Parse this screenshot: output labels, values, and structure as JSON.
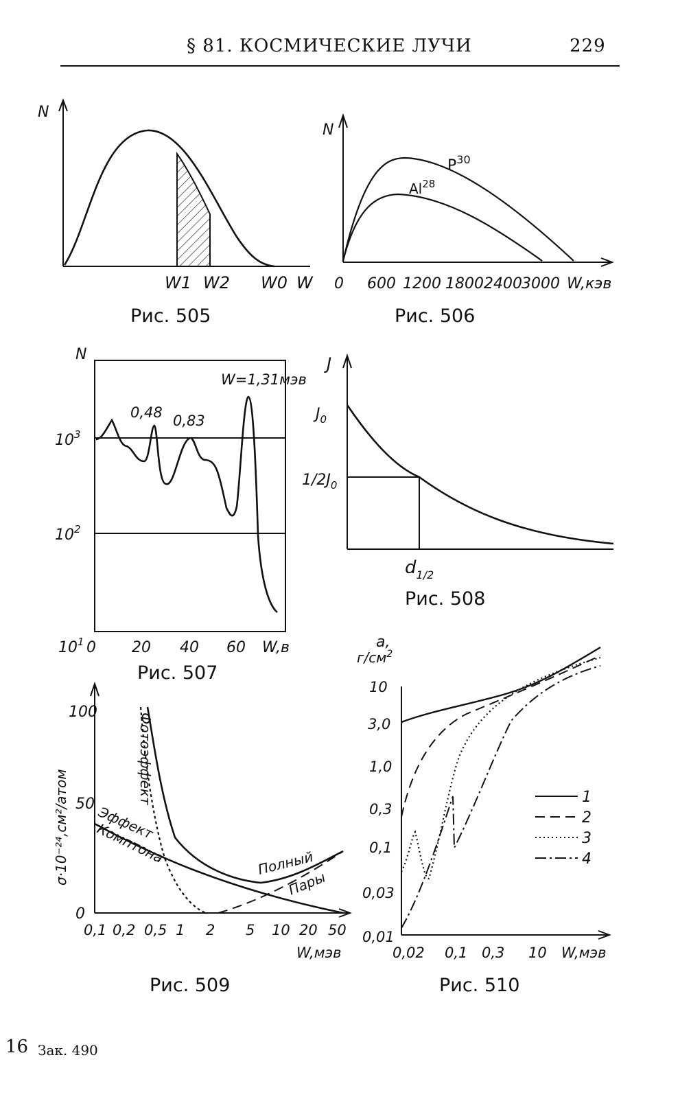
{
  "header": {
    "section": "§ 81. КОСМИЧЕСКИЕ ЛУЧИ",
    "page_number": "229"
  },
  "footer": {
    "sheet": "16",
    "order": "Зак. 490"
  },
  "chart_data": [
    {
      "figure": "Рис. 505",
      "type": "area",
      "ylabel": "N",
      "xlabel": "W",
      "tick_labels": [
        "W1",
        "W2",
        "W0"
      ],
      "shaded_interval": [
        "W1",
        "W2"
      ]
    },
    {
      "figure": "Рис. 506",
      "type": "line",
      "ylabel": "N",
      "xlabel": "W,кэв",
      "x_ticks": [
        "0",
        "600",
        "1200",
        "1800",
        "2400",
        "3000"
      ],
      "series": [
        {
          "name": "P³⁰",
          "x": [
            0,
            400,
            950,
            1600,
            2400,
            3150
          ],
          "y": [
            0,
            0.78,
            1.0,
            0.82,
            0.42,
            0
          ]
        },
        {
          "name": "Al²⁸",
          "x": [
            0,
            300,
            800,
            1400,
            2200,
            2800
          ],
          "y": [
            0,
            0.7,
            0.84,
            0.6,
            0.22,
            0
          ]
        }
      ]
    },
    {
      "figure": "Рис. 507",
      "type": "line",
      "ylabel": "N",
      "xlabel": "W,в",
      "x_ticks": [
        "0",
        "20",
        "40",
        "60"
      ],
      "y_ticks": [
        "10³",
        "10²",
        "10¹"
      ],
      "yscale": "log",
      "annotations": [
        "0,48",
        "0,83",
        "W=1,31мэв"
      ],
      "series": [
        {
          "x": [
            1,
            7,
            12,
            17,
            21,
            24,
            27,
            32,
            38,
            41,
            45,
            50,
            54,
            57,
            61,
            63,
            66,
            68,
            70,
            73,
            77
          ],
          "y": [
            850,
            1500,
            900,
            620,
            600,
            1400,
            550,
            500,
            1000,
            800,
            600,
            600,
            300,
            170,
            450,
            2500,
            2200,
            900,
            60,
            20,
            15
          ]
        }
      ]
    },
    {
      "figure": "Рис. 508",
      "type": "line",
      "ylabel": "J",
      "y_ticks": [
        "J0",
        "1/2J0"
      ],
      "x_ticks": [
        "d1/2"
      ],
      "series": [
        {
          "x": [
            0,
            0.5,
            1,
            1.5,
            2,
            2.5,
            3,
            3.5
          ],
          "y": [
            1.0,
            0.71,
            0.5,
            0.35,
            0.25,
            0.18,
            0.12,
            0.09
          ]
        }
      ]
    },
    {
      "figure": "Рис. 509",
      "type": "line",
      "ylabel": "σ·10⁻²⁴,см²/атом",
      "xlabel": "W,мэв",
      "x_ticks": [
        "0,1",
        "0,2",
        "0,5",
        "1",
        "2",
        "5",
        "10",
        "20",
        "50"
      ],
      "y_ticks": [
        "0",
        "50",
        "100"
      ],
      "curve_labels": [
        "Фотоэффект",
        "Эффект",
        "Комптона",
        "Полный",
        "Пары"
      ],
      "series": [
        {
          "name": "Полный",
          "x": [
            0.4,
            0.5,
            0.6,
            0.8,
            1,
            1.5,
            2,
            3,
            4,
            5,
            10,
            20,
            50
          ],
          "y": [
            100,
            66,
            44,
            33,
            27,
            20,
            17,
            15,
            14,
            14,
            15,
            19,
            28
          ]
        },
        {
          "name": "Фотоэффект",
          "x": [
            0.35,
            0.4,
            0.5,
            0.6,
            0.8,
            1,
            1.5,
            2
          ],
          "y": [
            100,
            72,
            40,
            25,
            13,
            7,
            2,
            0
          ]
        },
        {
          "name": "Эффект Комптона",
          "x": [
            0.1,
            0.2,
            0.5,
            1,
            2,
            5,
            10,
            20,
            50
          ],
          "y": [
            41,
            35,
            26,
            20,
            14,
            8,
            5,
            3,
            1
          ]
        },
        {
          "name": "Пары",
          "x": [
            2.5,
            5,
            10,
            20,
            50
          ],
          "y": [
            0,
            5,
            11,
            18,
            27
          ]
        }
      ]
    },
    {
      "figure": "Рис. 510",
      "type": "line",
      "ylabel": "a, г/см²",
      "xlabel": "W,мэв",
      "x_ticks": [
        "0,02",
        "0,1",
        "0,3",
        "10"
      ],
      "y_ticks": [
        "0,01",
        "0,03",
        "0,1",
        "0,3",
        "1,0",
        "3,0",
        "10"
      ],
      "yscale": "log",
      "legend": [
        "1",
        "2",
        "3",
        "4"
      ],
      "legend_position": "right"
    }
  ],
  "captions": {
    "fig505": "Рис. 505",
    "fig506": "Рис. 506",
    "fig507": "Рис. 507",
    "fig508": "Рис. 508",
    "fig509": "Рис. 509",
    "fig510": "Рис. 510"
  }
}
